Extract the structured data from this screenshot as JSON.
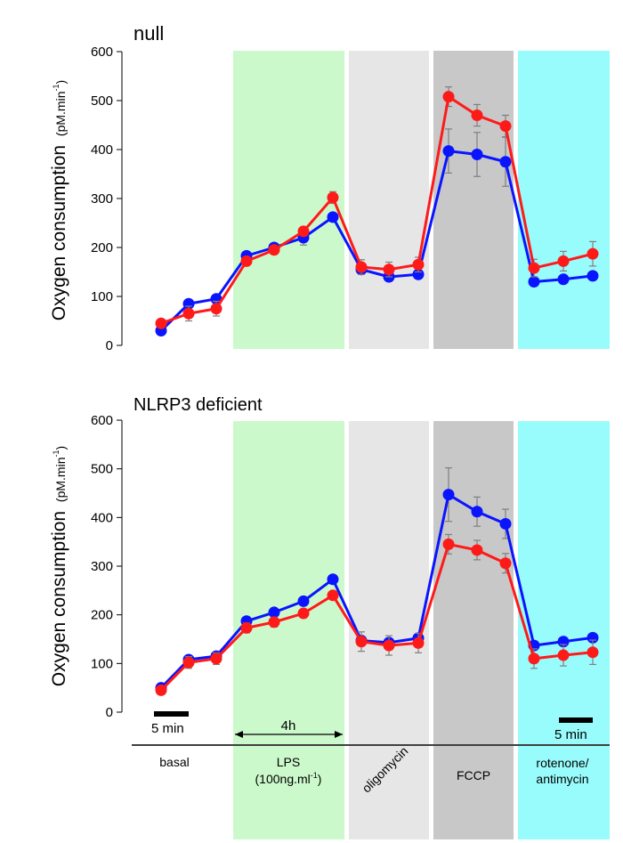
{
  "colors": {
    "series_blue": "#0a14ff",
    "series_red": "#ff1a1a",
    "band_basal": "#ffffff",
    "band_lps": "#ccf9cc",
    "band_oligomycin": "#e6e6e6",
    "band_fccp": "#c8c8c8",
    "band_rot": "#99fcfc",
    "errorbar": "#7f7f7f"
  },
  "phases": [
    {
      "label_lines": [
        "basal"
      ]
    },
    {
      "label_lines": [
        "LPS",
        "(100ng.ml",
        "-1",
        ")"
      ]
    },
    {
      "label_lines": [
        "oligomycin"
      ]
    },
    {
      "label_lines": [
        "FCCP"
      ]
    },
    {
      "label_lines": [
        "rotenone/",
        "antimycin"
      ]
    }
  ],
  "annotations": {
    "duration_4h": "4h",
    "scale_left": "5 min",
    "scale_right": "5 min"
  },
  "chart_data": [
    {
      "type": "line",
      "title": "null",
      "ylabel_main": "Oxygen consumption",
      "ylabel_unit_a": "(pM.min",
      "ylabel_unit_sup": "-1",
      "ylabel_unit_b": ")",
      "ylim": [
        0,
        600
      ],
      "yticks": [
        0,
        100,
        200,
        300,
        400,
        500,
        600
      ],
      "x": [
        1,
        2,
        3,
        4,
        5,
        6,
        7,
        8,
        9,
        10,
        11,
        12,
        13,
        14,
        15,
        16,
        17
      ],
      "series": [
        {
          "color": "blue",
          "values": [
            30,
            85,
            95,
            183,
            200,
            220,
            262,
            155,
            140,
            145,
            397,
            390,
            375,
            130,
            135,
            142
          ],
          "x": [
            1,
            2,
            3,
            4,
            5,
            6,
            7,
            8,
            9,
            10,
            11,
            12,
            13,
            14,
            15,
            16
          ],
          "errors": [
            0,
            0,
            0,
            0,
            0,
            15,
            0,
            0,
            0,
            0,
            45,
            45,
            50,
            0,
            0,
            0
          ]
        },
        {
          "color": "red",
          "values": [
            45,
            65,
            75,
            172,
            195,
            233,
            302,
            160,
            155,
            165,
            508,
            470,
            448,
            158,
            172,
            187
          ],
          "x": [
            1,
            2,
            3,
            4,
            5,
            6,
            7,
            8,
            9,
            10,
            11,
            12,
            13,
            14,
            15,
            16
          ],
          "errors": [
            0,
            15,
            15,
            0,
            0,
            0,
            12,
            15,
            15,
            15,
            20,
            22,
            22,
            18,
            20,
            25
          ]
        }
      ]
    },
    {
      "type": "line",
      "title": "NLRP3 deficient",
      "ylabel_main": "Oxygen consumption",
      "ylabel_unit_a": "(pM.min",
      "ylabel_unit_sup": "-1",
      "ylabel_unit_b": ")",
      "ylim": [
        0,
        600
      ],
      "yticks": [
        0,
        100,
        200,
        300,
        400,
        500,
        600
      ],
      "series": [
        {
          "color": "blue",
          "values": [
            50,
            108,
            115,
            187,
            205,
            228,
            273,
            147,
            143,
            152,
            447,
            412,
            387,
            137,
            145,
            153
          ],
          "x": [
            1,
            2,
            3,
            4,
            5,
            6,
            7,
            8,
            9,
            10,
            11,
            12,
            13,
            14,
            15,
            16
          ],
          "errors": [
            0,
            0,
            0,
            0,
            0,
            0,
            0,
            0,
            0,
            0,
            55,
            30,
            30,
            0,
            0,
            0
          ]
        },
        {
          "color": "red",
          "values": [
            45,
            102,
            110,
            173,
            185,
            203,
            240,
            145,
            137,
            142,
            345,
            333,
            306,
            110,
            117,
            123
          ],
          "x": [
            1,
            2,
            3,
            4,
            5,
            6,
            7,
            8,
            9,
            10,
            11,
            12,
            13,
            14,
            15,
            16
          ],
          "errors": [
            0,
            12,
            12,
            10,
            10,
            0,
            0,
            20,
            20,
            20,
            20,
            20,
            20,
            20,
            22,
            25
          ]
        }
      ]
    }
  ]
}
